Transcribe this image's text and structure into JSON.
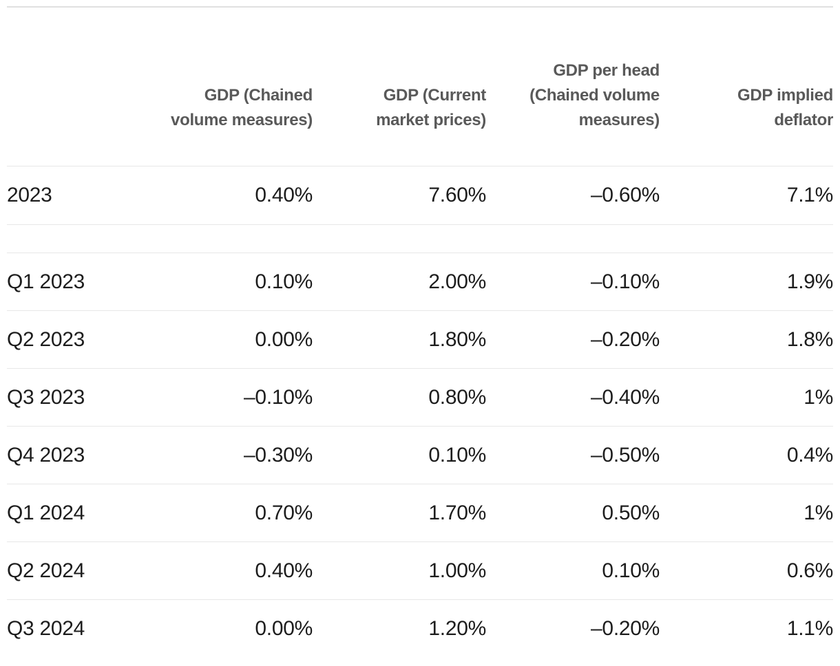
{
  "chart_data": {
    "type": "table",
    "columns": [
      "",
      "GDP (Chained\nvolume measures)",
      "GDP (Current\nmarket prices)",
      "GDP per head\n(Chained volume\nmeasures)",
      "GDP implied\ndeflator"
    ],
    "rows": [
      {
        "label": "2023",
        "values": [
          "0.40%",
          "7.60%",
          "–0.60%",
          "7.1%"
        ]
      },
      {
        "label": "Q1 2023",
        "values": [
          "0.10%",
          "2.00%",
          "–0.10%",
          "1.9%"
        ]
      },
      {
        "label": "Q2 2023",
        "values": [
          "0.00%",
          "1.80%",
          "–0.20%",
          "1.8%"
        ]
      },
      {
        "label": "Q3 2023",
        "values": [
          "–0.10%",
          "0.80%",
          "–0.40%",
          "1%"
        ]
      },
      {
        "label": "Q4 2023",
        "values": [
          "–0.30%",
          "0.10%",
          "–0.50%",
          "0.4%"
        ]
      },
      {
        "label": "Q1 2024",
        "values": [
          "0.70%",
          "1.70%",
          "0.50%",
          "1%"
        ]
      },
      {
        "label": "Q2 2024",
        "values": [
          "0.40%",
          "1.00%",
          "0.10%",
          "0.6%"
        ]
      },
      {
        "label": "Q3 2024",
        "values": [
          "0.00%",
          "1.20%",
          "–0.20%",
          "1.1%"
        ]
      }
    ],
    "colors": {
      "header_text": "#595959",
      "body_text": "#1d1d1d",
      "top_rule": "#e0e0e0",
      "row_rule": "#e7e7e7"
    }
  }
}
